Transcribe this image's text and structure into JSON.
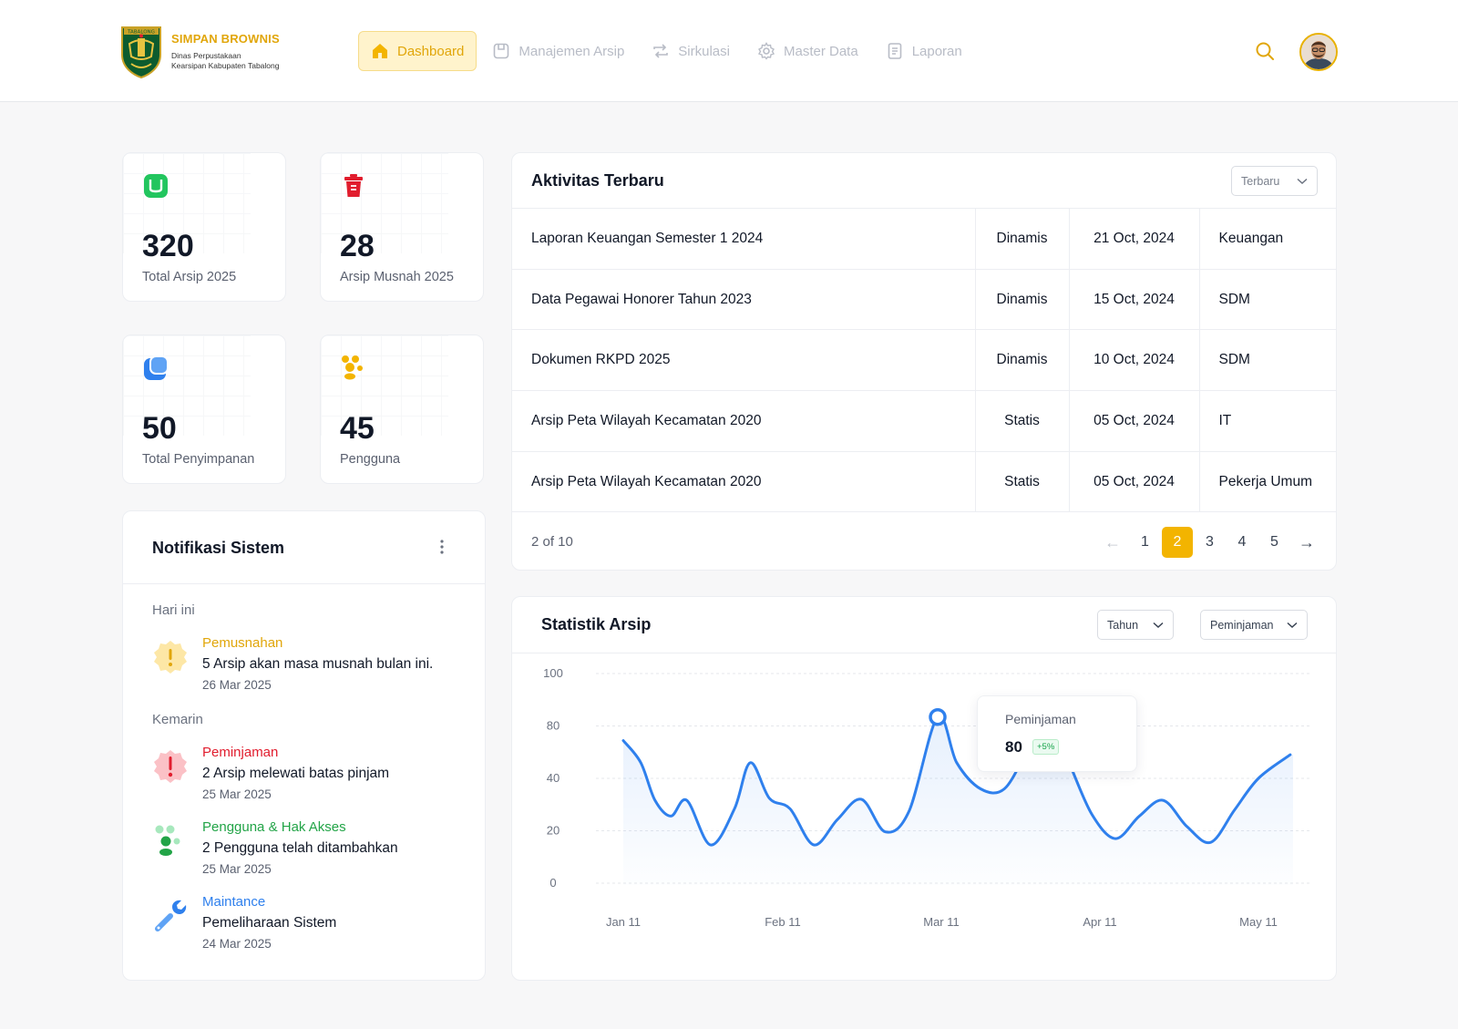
{
  "header": {
    "app_name": "SIMPAN BROWNIS",
    "org_line1": "Dinas Perpustakaan",
    "org_line2": "Kearsipan Kabupaten Tabalong",
    "emblem_text": "TABALONG",
    "nav": [
      {
        "label": "Dashboard",
        "icon": "home-icon",
        "active": true
      },
      {
        "label": "Manajemen Arsip",
        "icon": "archive-icon",
        "active": false
      },
      {
        "label": "Sirkulasi",
        "icon": "repeat-icon",
        "active": false
      },
      {
        "label": "Master Data",
        "icon": "gear-icon",
        "active": false
      },
      {
        "label": "Laporan",
        "icon": "report-icon",
        "active": false
      }
    ]
  },
  "stats": [
    {
      "value": "320",
      "label": "Total Arsip 2025",
      "icon": "archive-icon",
      "color": "#22c55e"
    },
    {
      "value": "28",
      "label": "Arsip Musnah 2025",
      "icon": "trash-icon",
      "color": "#e11d2e"
    },
    {
      "value": "50",
      "label": "Total Penyimpanan",
      "icon": "storage-icon",
      "color": "#2f80ed"
    },
    {
      "value": "45",
      "label": "Pengguna",
      "icon": "users-icon",
      "color": "#f3b400"
    }
  ],
  "notifications": {
    "title": "Notifikasi Sistem",
    "groups": [
      {
        "label": "Hari ini"
      },
      {
        "label": "Kemarin"
      }
    ],
    "items": [
      {
        "category": "Pemusnahan",
        "message": "5 Arsip akan masa musnah bulan ini.",
        "date": "26 Mar 2025",
        "color": "#e1a60a",
        "icon": "warning-badge-icon"
      },
      {
        "category": "Peminjaman",
        "message": "2 Arsip melewati batas pinjam",
        "date": "25 Mar 2025",
        "color": "#e11d2e",
        "icon": "alert-badge-icon"
      },
      {
        "category": "Pengguna & Hak Akses",
        "message": "2 Pengguna telah ditambahkan",
        "date": "25 Mar 2025",
        "color": "#22a447",
        "icon": "users-icon"
      },
      {
        "category": "Maintance",
        "message": "Pemeliharaan Sistem",
        "date": "24 Mar 2025",
        "color": "#2f80ed",
        "icon": "wrench-icon"
      }
    ]
  },
  "activity": {
    "title": "Aktivitas Terbaru",
    "sort": "Terbaru",
    "rows": [
      {
        "title": "Laporan Keuangan Semester 1 2024",
        "type": "Dinamis",
        "date": "21 Oct, 2024",
        "dept": "Keuangan"
      },
      {
        "title": "Data Pegawai Honorer Tahun 2023",
        "type": "Dinamis",
        "date": "15 Oct, 2024",
        "dept": "SDM"
      },
      {
        "title": "Dokumen RKPD 2025",
        "type": "Dinamis",
        "date": "10 Oct, 2024",
        "dept": "SDM"
      },
      {
        "title": "Arsip Peta Wilayah Kecamatan 2020",
        "type": "Statis",
        "date": "05 Oct, 2024",
        "dept": "IT"
      },
      {
        "title": "Arsip Peta Wilayah Kecamatan 2020",
        "type": "Statis",
        "date": "05 Oct, 2024",
        "dept": "Pekerja Umum"
      }
    ],
    "count_text": "2 of 10",
    "pages": [
      "1",
      "2",
      "3",
      "4",
      "5"
    ],
    "current_page": "2",
    "prev_symbol": "←",
    "next_symbol": "→"
  },
  "statistik": {
    "title": "Statistik Arsip",
    "period_filter": "Tahun",
    "type_filter": "Peminjaman",
    "tooltip": {
      "series": "Peminjaman",
      "value": "80",
      "change": "+5%"
    }
  },
  "chart_data": {
    "type": "line",
    "title": "Statistik Arsip",
    "series": [
      {
        "name": "Peminjaman"
      }
    ],
    "y_tick_labels": [
      "100",
      "80",
      "40",
      "20",
      "0"
    ],
    "x_tick_labels": [
      "Jan  11",
      "Feb 11",
      "Mar 11",
      "Apr 11",
      "May 11"
    ],
    "points_by_tick_level": [
      [
        0.0,
        2.72
      ],
      [
        0.11,
        2.3
      ],
      [
        0.2,
        1.58
      ],
      [
        0.3,
        1.28
      ],
      [
        0.4,
        1.58
      ],
      [
        0.55,
        0.73
      ],
      [
        0.7,
        1.42
      ],
      [
        0.8,
        2.3
      ],
      [
        0.92,
        1.62
      ],
      [
        1.05,
        1.42
      ],
      [
        1.2,
        0.73
      ],
      [
        1.35,
        1.22
      ],
      [
        1.5,
        1.6
      ],
      [
        1.65,
        0.98
      ],
      [
        1.8,
        1.38
      ],
      [
        1.98,
        3.17
      ],
      [
        2.1,
        2.3
      ],
      [
        2.25,
        1.8
      ],
      [
        2.4,
        1.8
      ],
      [
        2.55,
        2.55
      ],
      [
        2.68,
        3.12
      ],
      [
        2.8,
        2.35
      ],
      [
        2.95,
        1.32
      ],
      [
        3.1,
        0.85
      ],
      [
        3.25,
        1.28
      ],
      [
        3.4,
        1.58
      ],
      [
        3.55,
        1.08
      ],
      [
        3.7,
        0.78
      ],
      [
        3.85,
        1.4
      ],
      [
        4.0,
        2.0
      ],
      [
        4.2,
        2.45
      ]
    ],
    "highlight_point": [
      1.98,
      3.17
    ],
    "x_range_ticks": [
      -0.17,
      4.2
    ],
    "grid": true,
    "area_fill": true,
    "line_color": "#2f80ed"
  }
}
